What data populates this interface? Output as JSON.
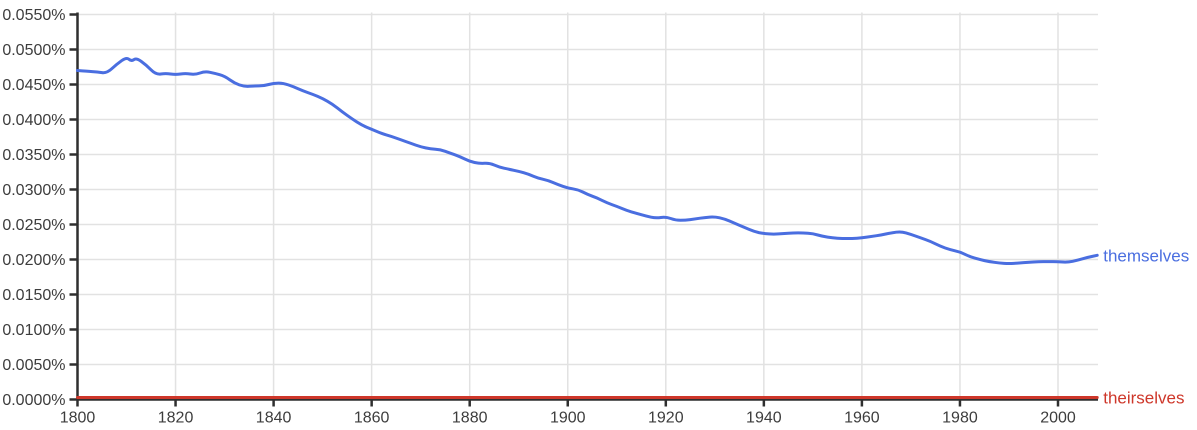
{
  "chart_data": {
    "type": "line",
    "title": "",
    "xlabel": "",
    "ylabel": "",
    "x_range": [
      1800,
      2008
    ],
    "y_range_percent": [
      0.0,
      0.055
    ],
    "grid": true,
    "legend_position": "line-end-labels-right",
    "x_tick_labels": [
      "1800",
      "1820",
      "1840",
      "1860",
      "1880",
      "1900",
      "1920",
      "1940",
      "1960",
      "1980",
      "2000"
    ],
    "x_tick_years": [
      1800,
      1820,
      1840,
      1860,
      1880,
      1900,
      1920,
      1940,
      1960,
      1980,
      2000
    ],
    "y_tick_labels": [
      "0.0000%",
      "0.0050%",
      "0.0100%",
      "0.0150%",
      "0.0200%",
      "0.0250%",
      "0.0300%",
      "0.0350%",
      "0.0400%",
      "0.0450%",
      "0.0500%",
      "0.0550%"
    ],
    "y_tick_values_percent": [
      0.0,
      0.005,
      0.01,
      0.015,
      0.02,
      0.025,
      0.03,
      0.035,
      0.04,
      0.045,
      0.05,
      0.055
    ],
    "colors": {
      "series_blue": "#4a6ee0",
      "series_red": "#ce372a",
      "gridline": "#e2e2e2",
      "axis": "#2f2f2f",
      "tick_label": "#3d3d3d"
    },
    "series": [
      {
        "name": "themselves",
        "color": "#4a6ee0",
        "points_year_percent": [
          [
            1800,
            0.047
          ],
          [
            1802,
            0.0469
          ],
          [
            1804,
            0.0468
          ],
          [
            1806,
            0.0466
          ],
          [
            1808,
            0.0479
          ],
          [
            1810,
            0.0489
          ],
          [
            1811,
            0.0483
          ],
          [
            1812,
            0.0488
          ],
          [
            1814,
            0.0478
          ],
          [
            1816,
            0.0464
          ],
          [
            1818,
            0.0466
          ],
          [
            1820,
            0.0464
          ],
          [
            1822,
            0.0466
          ],
          [
            1824,
            0.0464
          ],
          [
            1826,
            0.0469
          ],
          [
            1828,
            0.0466
          ],
          [
            1830,
            0.0462
          ],
          [
            1832,
            0.0452
          ],
          [
            1834,
            0.0447
          ],
          [
            1836,
            0.0448
          ],
          [
            1838,
            0.0448
          ],
          [
            1840,
            0.0452
          ],
          [
            1842,
            0.0452
          ],
          [
            1844,
            0.0447
          ],
          [
            1846,
            0.0441
          ],
          [
            1848,
            0.0436
          ],
          [
            1850,
            0.043
          ],
          [
            1852,
            0.0422
          ],
          [
            1854,
            0.0411
          ],
          [
            1856,
            0.0401
          ],
          [
            1858,
            0.0392
          ],
          [
            1860,
            0.0386
          ],
          [
            1862,
            0.038
          ],
          [
            1864,
            0.0376
          ],
          [
            1866,
            0.0371
          ],
          [
            1868,
            0.0366
          ],
          [
            1870,
            0.0361
          ],
          [
            1872,
            0.0358
          ],
          [
            1874,
            0.0357
          ],
          [
            1876,
            0.0352
          ],
          [
            1878,
            0.0347
          ],
          [
            1880,
            0.034
          ],
          [
            1882,
            0.0337
          ],
          [
            1884,
            0.0338
          ],
          [
            1886,
            0.0332
          ],
          [
            1888,
            0.0329
          ],
          [
            1890,
            0.0326
          ],
          [
            1892,
            0.0322
          ],
          [
            1894,
            0.0316
          ],
          [
            1896,
            0.0313
          ],
          [
            1898,
            0.0307
          ],
          [
            1900,
            0.0302
          ],
          [
            1902,
            0.03
          ],
          [
            1904,
            0.0293
          ],
          [
            1906,
            0.0288
          ],
          [
            1908,
            0.0281
          ],
          [
            1910,
            0.0276
          ],
          [
            1912,
            0.027
          ],
          [
            1914,
            0.0266
          ],
          [
            1916,
            0.0262
          ],
          [
            1918,
            0.0259
          ],
          [
            1920,
            0.0261
          ],
          [
            1922,
            0.0256
          ],
          [
            1924,
            0.0256
          ],
          [
            1926,
            0.0258
          ],
          [
            1928,
            0.026
          ],
          [
            1930,
            0.0261
          ],
          [
            1932,
            0.0258
          ],
          [
            1934,
            0.0252
          ],
          [
            1936,
            0.0246
          ],
          [
            1938,
            0.024
          ],
          [
            1940,
            0.0237
          ],
          [
            1942,
            0.0236
          ],
          [
            1944,
            0.0237
          ],
          [
            1946,
            0.0238
          ],
          [
            1948,
            0.0238
          ],
          [
            1950,
            0.0237
          ],
          [
            1952,
            0.0233
          ],
          [
            1954,
            0.0231
          ],
          [
            1956,
            0.023
          ],
          [
            1958,
            0.023
          ],
          [
            1960,
            0.0231
          ],
          [
            1962,
            0.0233
          ],
          [
            1964,
            0.0235
          ],
          [
            1966,
            0.0238
          ],
          [
            1968,
            0.024
          ],
          [
            1970,
            0.0236
          ],
          [
            1972,
            0.0231
          ],
          [
            1974,
            0.0226
          ],
          [
            1976,
            0.0219
          ],
          [
            1978,
            0.0214
          ],
          [
            1980,
            0.0211
          ],
          [
            1982,
            0.0204
          ],
          [
            1984,
            0.02
          ],
          [
            1986,
            0.0197
          ],
          [
            1988,
            0.0195
          ],
          [
            1990,
            0.0194
          ],
          [
            1992,
            0.0195
          ],
          [
            1994,
            0.0196
          ],
          [
            1996,
            0.0197
          ],
          [
            1998,
            0.0197
          ],
          [
            2000,
            0.0197
          ],
          [
            2002,
            0.0196
          ],
          [
            2004,
            0.0199
          ],
          [
            2006,
            0.0203
          ],
          [
            2008,
            0.0206
          ]
        ]
      },
      {
        "name": "theirselves",
        "color": "#ce372a",
        "points_year_percent": [
          [
            1800,
            0.0
          ],
          [
            1820,
            0.0
          ],
          [
            1840,
            0.0
          ],
          [
            1860,
            0.0
          ],
          [
            1880,
            0.0
          ],
          [
            1900,
            0.0
          ],
          [
            1920,
            0.0
          ],
          [
            1940,
            0.0
          ],
          [
            1960,
            0.0
          ],
          [
            1980,
            0.0
          ],
          [
            2000,
            0.0
          ],
          [
            2008,
            0.0
          ]
        ]
      }
    ]
  }
}
